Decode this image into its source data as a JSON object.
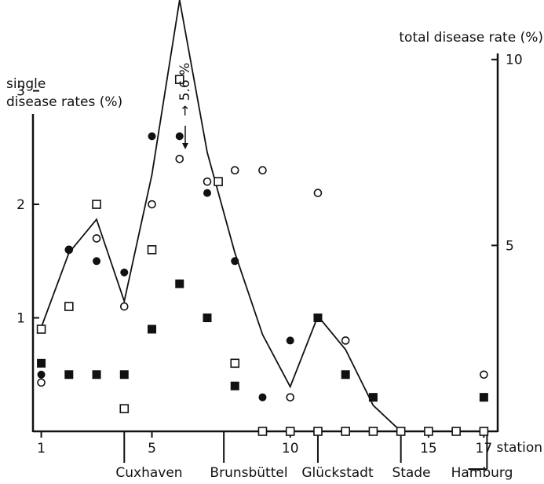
{
  "chart_data": {
    "type": "scatter",
    "title": "",
    "left_axis": {
      "label_line1": "single",
      "label_line2": "disease rates (%)",
      "ticks": [
        "1",
        "2",
        "3"
      ],
      "ylim": [
        0,
        3.8
      ]
    },
    "right_axis": {
      "label": "total disease rate (%)",
      "ticks": [
        "5",
        "10"
      ],
      "ylim": [
        0,
        11.6
      ]
    },
    "x_axis": {
      "label": "station",
      "ticks": [
        "1",
        "5",
        "10",
        "15",
        "17"
      ],
      "xlim": [
        0.7,
        17.5
      ]
    },
    "places": [
      "Cuxhaven",
      "Brunsbüttel",
      "Glückstadt",
      "Stade",
      "Hamburg"
    ],
    "place_stations": [
      4,
      7.6,
      11,
      14,
      17
    ],
    "annotation": "→ 5.6 %",
    "series": [
      {
        "marker": "open-circle",
        "points": [
          [
            1,
            0.43
          ],
          [
            2,
            1.6
          ],
          [
            3,
            1.7
          ],
          [
            4,
            1.1
          ],
          [
            5,
            2.0
          ],
          [
            6,
            2.4
          ],
          [
            7,
            2.2
          ],
          [
            8,
            2.3
          ],
          [
            9,
            2.3
          ],
          [
            10,
            0.3
          ],
          [
            11,
            2.1
          ],
          [
            12,
            0.8
          ],
          [
            13,
            0
          ],
          [
            14,
            0
          ],
          [
            15,
            0
          ],
          [
            16,
            0
          ],
          [
            17,
            0.5
          ]
        ]
      },
      {
        "marker": "filled-circle",
        "points": [
          [
            1,
            0.5
          ],
          [
            2,
            1.6
          ],
          [
            3,
            1.5
          ],
          [
            4,
            1.4
          ],
          [
            5,
            2.6
          ],
          [
            6,
            2.6
          ],
          [
            7,
            2.1
          ],
          [
            8,
            1.5
          ],
          [
            9,
            0.3
          ],
          [
            10,
            0.8
          ],
          [
            11,
            0
          ],
          [
            12,
            0
          ],
          [
            13,
            0
          ],
          [
            14,
            0
          ],
          [
            15,
            0
          ],
          [
            16,
            0
          ],
          [
            17,
            0
          ]
        ]
      },
      {
        "marker": "open-square",
        "points": [
          [
            1,
            0.9
          ],
          [
            2,
            1.1
          ],
          [
            3,
            2.0
          ],
          [
            4,
            0.2
          ],
          [
            5,
            1.6
          ],
          [
            6,
            3.1
          ],
          [
            7.4,
            2.2
          ],
          [
            8,
            0.6
          ],
          [
            9,
            0
          ],
          [
            10,
            0
          ],
          [
            11,
            0
          ],
          [
            12,
            0
          ],
          [
            13,
            0
          ],
          [
            14,
            0
          ],
          [
            15,
            0
          ],
          [
            16,
            0
          ],
          [
            17,
            0
          ]
        ]
      },
      {
        "marker": "filled-square",
        "points": [
          [
            1,
            0.6
          ],
          [
            2,
            0.5
          ],
          [
            3,
            0.5
          ],
          [
            4,
            0.5
          ],
          [
            5,
            0.9
          ],
          [
            6,
            1.3
          ],
          [
            7,
            1.0
          ],
          [
            8,
            0.4
          ],
          [
            11,
            1.0
          ],
          [
            12,
            0.5
          ],
          [
            13,
            0.3
          ],
          [
            17,
            0.3
          ]
        ]
      }
    ],
    "total_line": {
      "axis": "right",
      "points": [
        [
          1,
          2.8
        ],
        [
          2,
          4.8
        ],
        [
          3,
          5.7
        ],
        [
          4,
          3.5
        ],
        [
          5,
          6.9
        ],
        [
          6,
          11.6
        ],
        [
          7,
          7.5
        ],
        [
          8,
          4.8
        ],
        [
          9,
          2.6
        ],
        [
          10,
          1.2
        ],
        [
          11,
          3.1
        ],
        [
          12,
          2.2
        ],
        [
          13,
          0.7
        ],
        [
          14,
          0
        ],
        [
          15,
          0
        ],
        [
          16,
          0
        ],
        [
          17,
          0
        ]
      ]
    }
  }
}
